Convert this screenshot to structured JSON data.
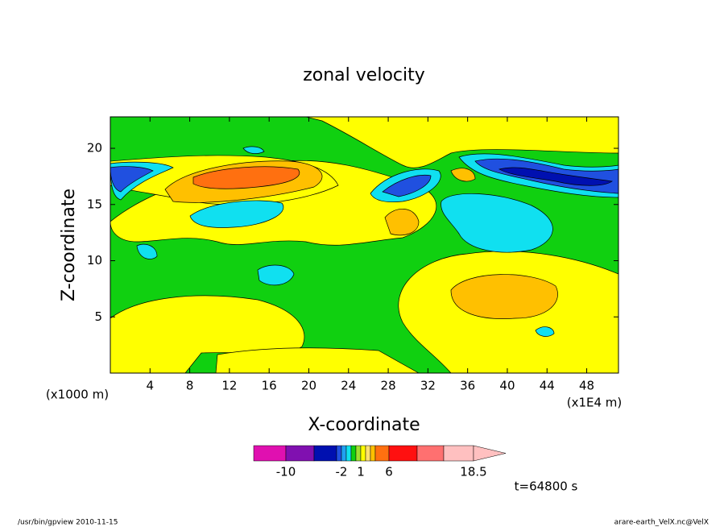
{
  "chart_data": {
    "type": "contour",
    "title": "zonal velocity",
    "x_label": "X-coordinate",
    "y_label": "Z-coordinate",
    "x_unit": "(x1E4 m)",
    "y_unit": "(x1000 m)",
    "xlim": [
      0,
      51.2
    ],
    "xticks": [
      4,
      8,
      12,
      16,
      20,
      24,
      28,
      32,
      36,
      40,
      44,
      48
    ],
    "ylim": [
      0,
      22.8
    ],
    "yticks": [
      5,
      10,
      15,
      20
    ],
    "colorbar": {
      "levels": [
        -14,
        -10,
        -6,
        -3,
        -2,
        -1,
        -0.5,
        0,
        1,
        2,
        3,
        4,
        6,
        10,
        14,
        18.5
      ],
      "colors": [
        "#e010b0",
        "#8010b0",
        "#0010b0",
        "#2050e0",
        "#20a0f0",
        "#10e0f0",
        "#10d010",
        "#a0e030",
        "#ffff00",
        "#ffe070",
        "#ffc000",
        "#ff7010",
        "#ff1010",
        "#ff7070",
        "#ffc0c0"
      ],
      "ticks": [
        -10,
        -2,
        1,
        6,
        18.5
      ]
    },
    "time_label": "t=64800 s",
    "footer_left": "/usr/bin/gpview  2010-11-15",
    "footer_right": "arare-earth_VelX.nc@VelX"
  }
}
